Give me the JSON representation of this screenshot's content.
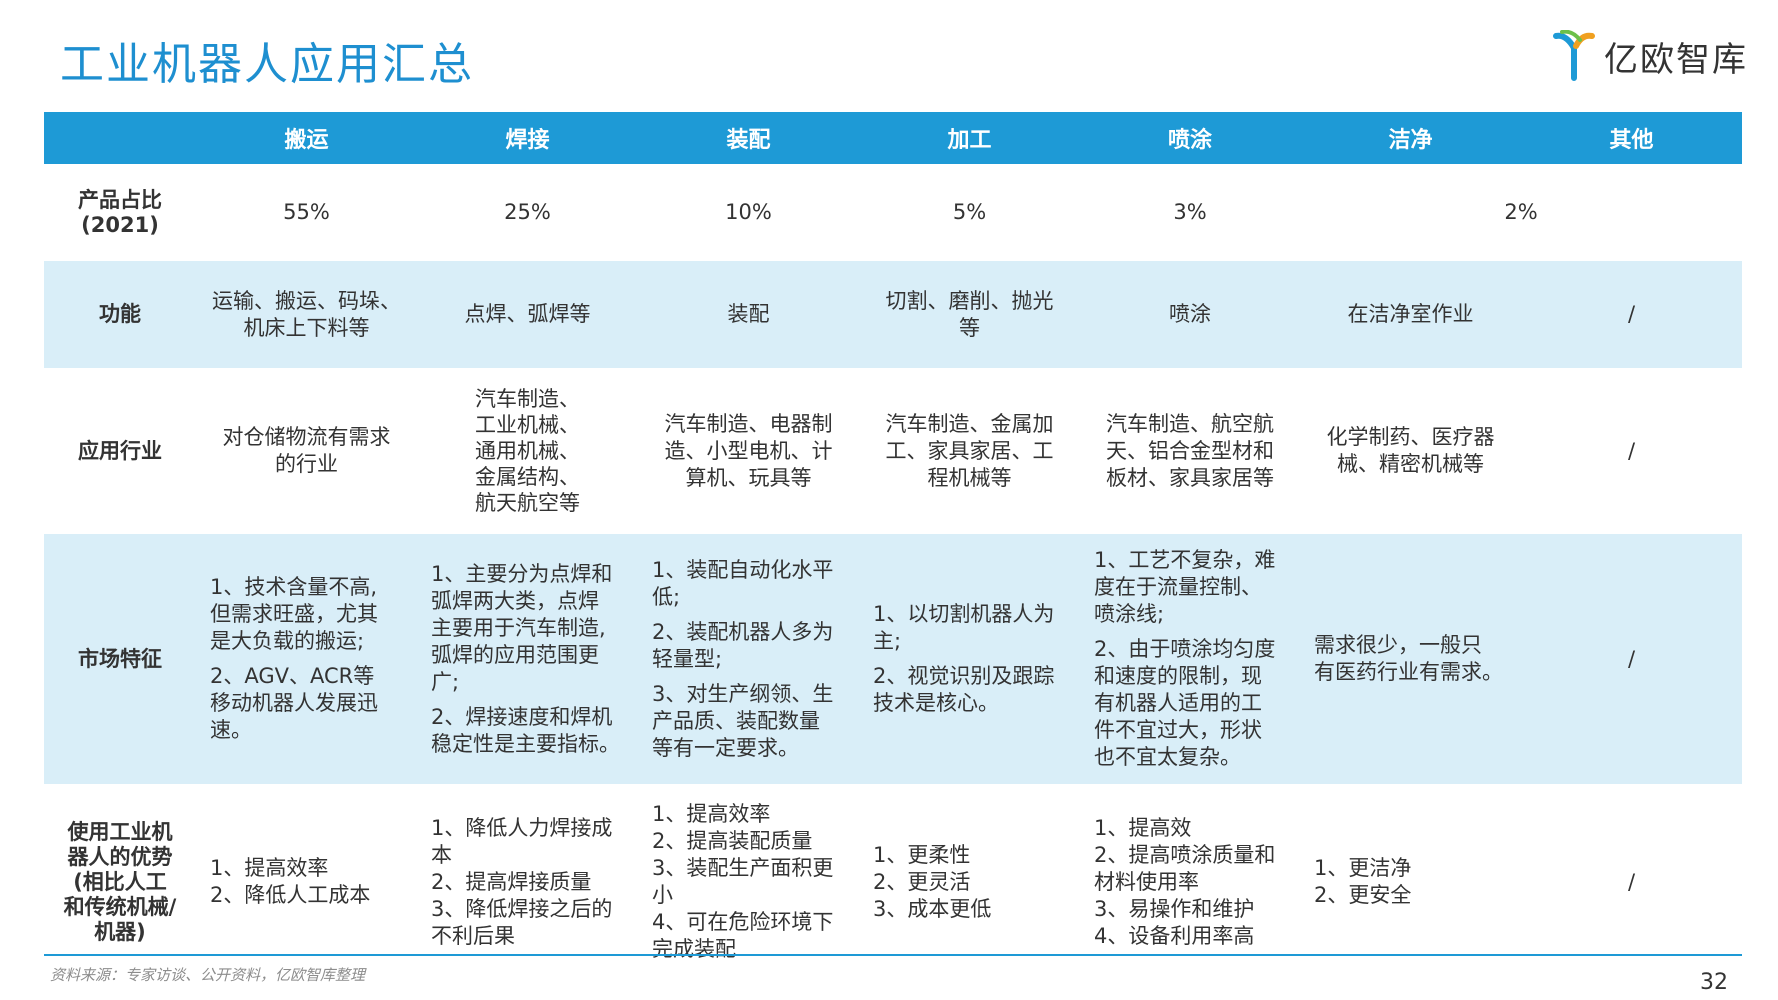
{
  "title": "工业机器人应用汇总",
  "logo": {
    "text": "亿欧智库"
  },
  "header": {
    "columns": [
      "搬运",
      "焊接",
      "装配",
      "加工",
      "喷涂",
      "洁净",
      "其他"
    ]
  },
  "rows": {
    "share": {
      "label_line1": "产品占比",
      "label_line2": "(2021)",
      "values": [
        "55%",
        "25%",
        "10%",
        "5%",
        "3%",
        "2%"
      ]
    },
    "function": {
      "label": "功能",
      "values": [
        [
          "运输、搬运、码垛、",
          "机床上下料等"
        ],
        [
          "点焊、弧焊等"
        ],
        [
          "装配"
        ],
        [
          "切割、磨削、抛光",
          "等"
        ],
        [
          "喷涂"
        ],
        [
          "在洁净室作业"
        ],
        [
          "/"
        ]
      ]
    },
    "industry": {
      "label": "应用行业",
      "values": [
        [
          "对仓储物流有需求",
          "的行业"
        ],
        [
          "汽车制造、",
          "工业机械、",
          "通用机械、",
          "金属结构、",
          "航天航空等"
        ],
        [
          "汽车制造、电器制",
          "造、小型电机、计",
          "算机、玩具等"
        ],
        [
          "汽车制造、金属加",
          "工、家具家居、工",
          "程机械等"
        ],
        [
          "汽车制造、航空航",
          "天、铝合金型材和",
          "板材、家具家居等"
        ],
        [
          "化学制药、医疗器",
          "械、精密机械等"
        ],
        [
          "/"
        ]
      ]
    },
    "market": {
      "label": "市场特征",
      "values": [
        [
          [
            "1、技术含量不高,",
            "但需求旺盛，尤其",
            "是大负载的搬运;"
          ],
          [
            "2、AGV、ACR等",
            "移动机器人发展迅",
            "速。"
          ]
        ],
        [
          [
            "1、主要分为点焊和",
            "弧焊两大类，点焊",
            "主要用于汽车制造,",
            "弧焊的应用范围更",
            "广;"
          ],
          [
            "2、焊接速度和焊机",
            "稳定性是主要指标。"
          ]
        ],
        [
          [
            "1、装配自动化水平",
            "低;"
          ],
          [
            "2、装配机器人多为",
            "轻量型;"
          ],
          [
            "3、对生产纲领、生",
            "产品质、装配数量",
            "等有一定要求。"
          ]
        ],
        [
          [
            "1、以切割机器人为",
            "主;"
          ],
          [
            "2、视觉识别及跟踪",
            "技术是核心。"
          ]
        ],
        [
          [
            "1、工艺不复杂，难",
            "度在于流量控制、",
            "喷涂线;"
          ],
          [
            "2、由于喷涂均匀度",
            "和速度的限制，现",
            "有机器人适用的工",
            "件不宜过大，形状",
            "也不宜太复杂。"
          ]
        ],
        [
          [
            "需求很少，一般只",
            "有医药行业有需求。"
          ]
        ],
        [
          [
            "/"
          ]
        ]
      ]
    },
    "advantage": {
      "label": [
        "使用工业机",
        "器人的优势",
        "(相比人工",
        "和传统机械/",
        "机器)"
      ],
      "values": [
        [
          "1、提高效率",
          "2、降低人工成本"
        ],
        [
          "1、降低人力焊接成",
          "本",
          "2、提高焊接质量",
          "3、降低焊接之后的",
          "不利后果"
        ],
        [
          "1、提高效率",
          "2、提高装配质量",
          "3、装配生产面积更",
          "小",
          "4、可在危险环境下",
          "完成装配"
        ],
        [
          "1、更柔性",
          "2、更灵活",
          "3、成本更低"
        ],
        [
          "1、提高效",
          "2、提高喷涂质量和",
          "材料使用率",
          "3、易操作和维护",
          "4、设备利用率高"
        ],
        [
          "1、更洁净",
          "2、更安全"
        ],
        [
          "/"
        ]
      ]
    }
  },
  "footer": {
    "source": "资料来源：专家访谈、公开资料，亿欧智库整理",
    "page": "32"
  },
  "colors": {
    "accent": "#1e9ad6",
    "title": "#1e8fd0",
    "band": "#d9eef8"
  }
}
